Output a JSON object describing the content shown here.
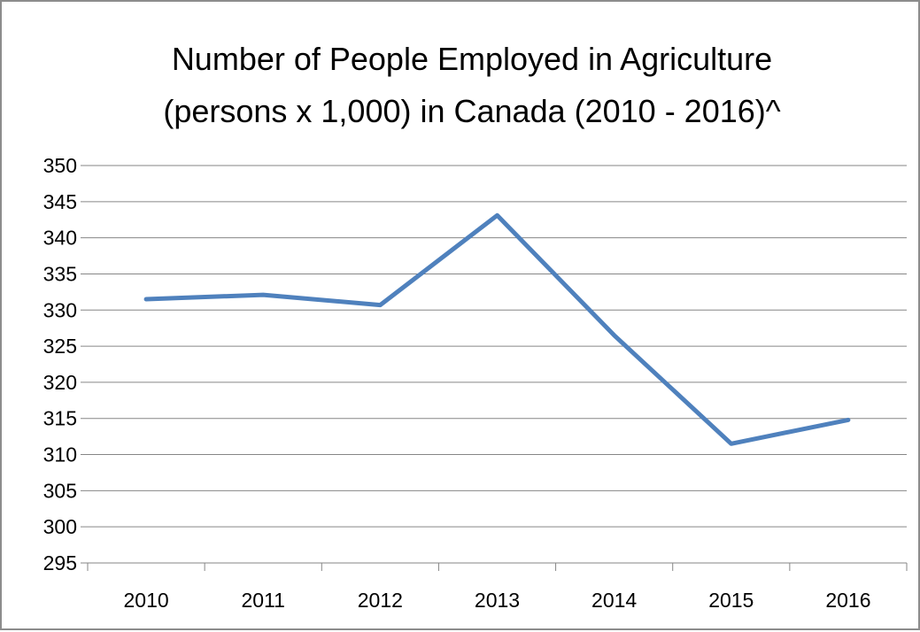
{
  "chart_data": {
    "type": "line",
    "title_lines": [
      "Number of People Employed in Agriculture",
      "(persons x 1,000) in Canada (2010 - 2016)^"
    ],
    "categories": [
      "2010",
      "2011",
      "2012",
      "2013",
      "2014",
      "2015",
      "2016"
    ],
    "series": [
      {
        "values": [
          331.5,
          332.1,
          330.7,
          343.1,
          326.5,
          311.5,
          314.8
        ]
      }
    ],
    "ylim": [
      295,
      350
    ],
    "y_step": 5,
    "grid": true,
    "legend": "none",
    "series_color": "#4f81bd",
    "xlabel": "",
    "ylabel": ""
  }
}
